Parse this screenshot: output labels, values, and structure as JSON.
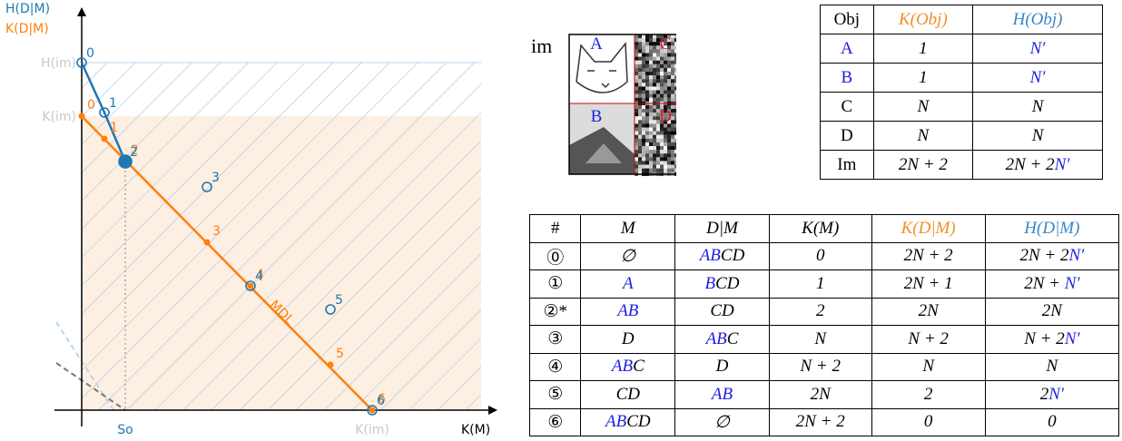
{
  "plot": {
    "y_axis_labels": [
      {
        "t": "H(D|M)",
        "c": "#1f77b4"
      },
      {
        "t": "K(D|M)",
        "c": "#ff7f0e"
      }
    ],
    "x_axis_label": "K(M)",
    "y_ticks": [
      "H(im)",
      "K(im)"
    ],
    "x_ticks": [
      {
        "t": "So",
        "c": "#1f77b4"
      },
      {
        "t": "K(im)",
        "c": "#c8c8c8"
      }
    ],
    "point_labels": [
      "0",
      "1",
      "2",
      "3",
      "4",
      "5",
      "6"
    ],
    "line_label": "MDL"
  },
  "image": {
    "label": "im",
    "quadrants": [
      {
        "t": "A",
        "c": "#1f1fe0"
      },
      {
        "t": "C",
        "c": "#d0202a"
      },
      {
        "t": "B",
        "c": "#1f1fe0"
      },
      {
        "t": "D",
        "c": "#d0202a"
      }
    ]
  },
  "obj_table": {
    "header": [
      "Obj",
      [
        {
          "t": "K(Obj)",
          "c": "#f28e2b"
        }
      ],
      [
        {
          "t": "H(Obj)",
          "c": "#3a87c8"
        }
      ]
    ],
    "rows": [
      [
        [
          {
            "t": "A",
            "c": "#1f1fe0"
          }
        ],
        "1",
        [
          {
            "t": "N′",
            "c": "#1f1fe0"
          }
        ]
      ],
      [
        [
          {
            "t": "B",
            "c": "#1f1fe0"
          }
        ],
        "1",
        [
          {
            "t": "N′",
            "c": "#1f1fe0"
          }
        ]
      ],
      [
        "C",
        "N",
        "N"
      ],
      [
        "D",
        "N",
        "N"
      ],
      [
        "Im",
        "2N + 2",
        [
          "2N + 2",
          {
            "t": "N′",
            "c": "#1f1fe0"
          }
        ]
      ]
    ]
  },
  "model_table": {
    "header": [
      "#",
      "M",
      "D|M",
      "K(M)",
      [
        {
          "t": "K(D|M)",
          "c": "#f28e2b"
        }
      ],
      [
        {
          "t": "H(D|M)",
          "c": "#3a87c8"
        }
      ]
    ],
    "rows": [
      [
        "⓪",
        "∅",
        [
          {
            "t": "AB",
            "c": "#1f1fe0"
          },
          "CD"
        ],
        "0",
        "2N + 2",
        [
          "2N + 2",
          {
            "t": "N′",
            "c": "#1f1fe0"
          }
        ]
      ],
      [
        "①",
        [
          {
            "t": "A",
            "c": "#1f1fe0"
          }
        ],
        [
          {
            "t": "B",
            "c": "#1f1fe0"
          },
          "CD"
        ],
        "1",
        "2N + 1",
        [
          "2N + ",
          {
            "t": "N′",
            "c": "#1f1fe0"
          }
        ]
      ],
      [
        "②*",
        [
          {
            "t": "AB",
            "c": "#1f1fe0"
          }
        ],
        "CD",
        "2",
        "2N",
        "2N"
      ],
      [
        "③",
        "D",
        [
          {
            "t": "AB",
            "c": "#1f1fe0"
          },
          "C"
        ],
        "N",
        "N + 2",
        [
          "N + 2",
          {
            "t": "N′",
            "c": "#1f1fe0"
          }
        ]
      ],
      [
        "④",
        [
          {
            "t": "AB",
            "c": "#1f1fe0"
          },
          "C"
        ],
        "D",
        "N + 2",
        "N",
        "N"
      ],
      [
        "⑤",
        "CD",
        [
          {
            "t": "AB",
            "c": "#1f1fe0"
          }
        ],
        "2N",
        "2",
        [
          "2",
          {
            "t": "N′",
            "c": "#1f1fe0"
          }
        ]
      ],
      [
        "⑥",
        [
          {
            "t": "AB",
            "c": "#1f1fe0"
          },
          "CD"
        ],
        "∅",
        "2N + 2",
        "0",
        "0"
      ]
    ]
  }
}
